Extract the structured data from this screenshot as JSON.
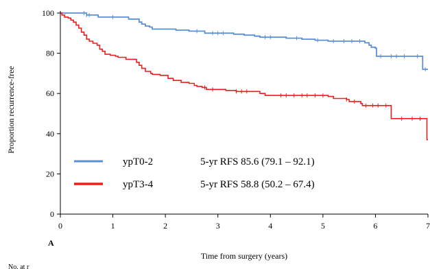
{
  "chart_data": {
    "type": "line",
    "title": "",
    "xlabel": "Time from  surgery (years)",
    "ylabel": "Proportion recurrence-free",
    "xlim": [
      0,
      7
    ],
    "ylim": [
      0,
      100
    ],
    "x_ticks": [
      0,
      1,
      2,
      3,
      4,
      5,
      6,
      7
    ],
    "y_ticks": [
      0,
      20,
      40,
      60,
      80,
      100
    ],
    "grid": false,
    "legend_position": "bottom-left",
    "panel_label": "A",
    "footnote": "No. at r",
    "series": [
      {
        "name": "ypT0-2",
        "legend_stat": "5-yr RFS 85.6 (79.1 – 92.1)",
        "color": "#5b8fd4",
        "steps": [
          [
            0,
            100
          ],
          [
            0.5,
            99
          ],
          [
            0.72,
            98
          ],
          [
            1.3,
            97
          ],
          [
            1.5,
            95.5
          ],
          [
            1.55,
            94.5
          ],
          [
            1.62,
            93.5
          ],
          [
            1.7,
            93
          ],
          [
            1.75,
            92
          ],
          [
            2.2,
            91.5
          ],
          [
            2.45,
            91
          ],
          [
            2.75,
            90
          ],
          [
            3.3,
            89.5
          ],
          [
            3.5,
            89
          ],
          [
            3.7,
            88.5
          ],
          [
            3.8,
            88
          ],
          [
            4.3,
            87.5
          ],
          [
            4.6,
            87
          ],
          [
            4.85,
            86.5
          ],
          [
            5.1,
            86
          ],
          [
            5.8,
            85.2
          ],
          [
            5.88,
            84
          ],
          [
            5.92,
            83
          ],
          [
            6.0,
            82.5
          ],
          [
            6.02,
            78.5
          ],
          [
            6.9,
            72
          ],
          [
            7.0,
            72
          ]
        ],
        "censor_times": [
          0.45,
          0.5,
          0.55,
          1.0,
          2.6,
          2.9,
          3.0,
          3.1,
          3.9,
          4.0,
          4.5,
          4.9,
          5.2,
          5.4,
          5.55,
          5.7,
          6.1,
          6.3,
          6.4,
          6.55,
          6.8,
          6.95
        ]
      },
      {
        "name": "ypT3-4",
        "legend_stat": "5-yr RFS 58.8 (50.2 – 67.4)",
        "color": "#ee1c1c",
        "steps": [
          [
            0,
            100
          ],
          [
            0.03,
            99
          ],
          [
            0.08,
            98
          ],
          [
            0.15,
            97.5
          ],
          [
            0.2,
            96.5
          ],
          [
            0.25,
            95.5
          ],
          [
            0.3,
            94
          ],
          [
            0.35,
            92.5
          ],
          [
            0.4,
            90.5
          ],
          [
            0.45,
            89
          ],
          [
            0.5,
            87
          ],
          [
            0.55,
            86
          ],
          [
            0.62,
            85
          ],
          [
            0.7,
            84
          ],
          [
            0.75,
            82
          ],
          [
            0.8,
            81
          ],
          [
            0.85,
            79.5
          ],
          [
            0.95,
            79
          ],
          [
            1.05,
            78.5
          ],
          [
            1.1,
            78
          ],
          [
            1.25,
            77
          ],
          [
            1.45,
            75.5
          ],
          [
            1.5,
            74
          ],
          [
            1.55,
            72.5
          ],
          [
            1.62,
            71
          ],
          [
            1.72,
            70
          ],
          [
            1.75,
            69.5
          ],
          [
            1.9,
            69
          ],
          [
            2.05,
            67.5
          ],
          [
            2.15,
            66.5
          ],
          [
            2.3,
            65.5
          ],
          [
            2.45,
            65
          ],
          [
            2.55,
            64
          ],
          [
            2.6,
            63.5
          ],
          [
            2.7,
            63
          ],
          [
            2.78,
            62
          ],
          [
            3.15,
            61.5
          ],
          [
            3.35,
            61
          ],
          [
            3.8,
            60
          ],
          [
            3.9,
            59
          ],
          [
            5.1,
            58.5
          ],
          [
            5.2,
            57.5
          ],
          [
            5.45,
            57
          ],
          [
            5.5,
            56
          ],
          [
            5.72,
            55
          ],
          [
            5.75,
            54
          ],
          [
            6.3,
            47.5
          ],
          [
            6.98,
            37
          ],
          [
            7.0,
            37
          ]
        ],
        "censor_times": [
          2.75,
          2.9,
          3.35,
          3.45,
          3.55,
          4.2,
          4.3,
          4.45,
          4.6,
          4.7,
          4.85,
          5.0,
          5.45,
          5.6,
          5.82,
          5.95,
          6.05,
          6.2,
          6.5,
          6.7,
          6.85
        ]
      }
    ]
  }
}
